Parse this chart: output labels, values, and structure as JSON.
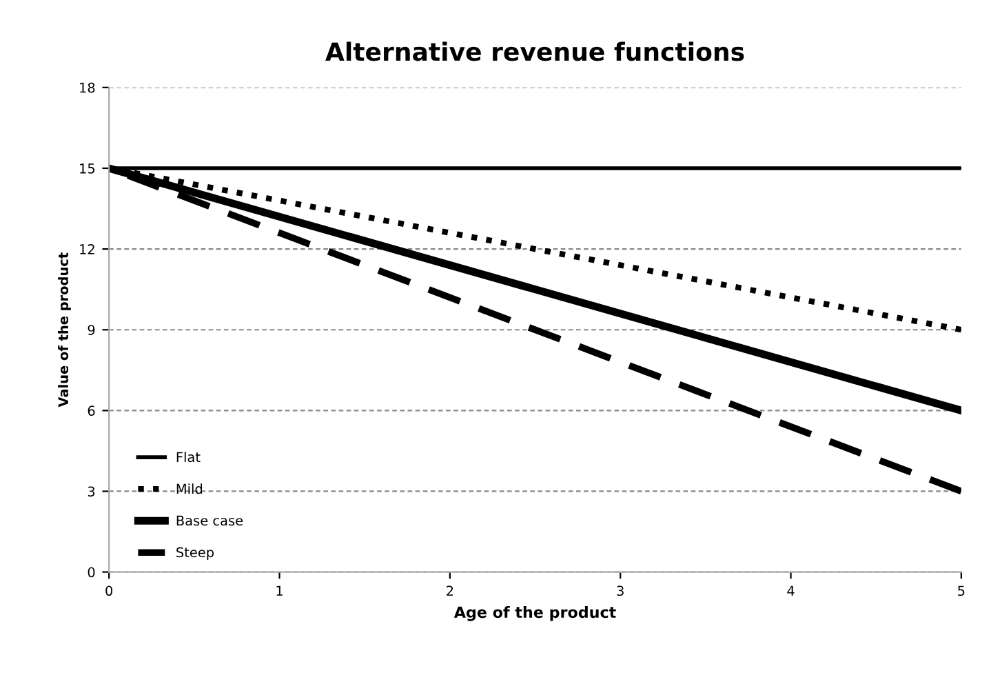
{
  "chart_data": {
    "type": "line",
    "title": "Alternative revenue functions",
    "xlabel": "Age of the product",
    "ylabel": "Value of the product",
    "x": [
      0,
      5
    ],
    "series": [
      {
        "name": "Flat",
        "color": "#000000",
        "values": [
          15,
          15
        ],
        "line_style": "solid"
      },
      {
        "name": "Mild",
        "color": "#000000",
        "values": [
          15,
          9
        ],
        "line_style": "dotted"
      },
      {
        "name": "Base case",
        "color": "#000000",
        "values": [
          15,
          6
        ],
        "line_style": "solid"
      },
      {
        "name": "Steep",
        "color": "#000000",
        "values": [
          15,
          3
        ],
        "line_style": "dashed"
      }
    ],
    "xlim": [
      0,
      5
    ],
    "xticks": [
      0,
      1,
      2,
      3,
      4,
      5
    ],
    "ylim": [
      0,
      18
    ],
    "yticks": [
      0,
      3,
      6,
      9,
      12,
      15,
      18
    ],
    "grid": "y",
    "legend": "bottom left"
  }
}
